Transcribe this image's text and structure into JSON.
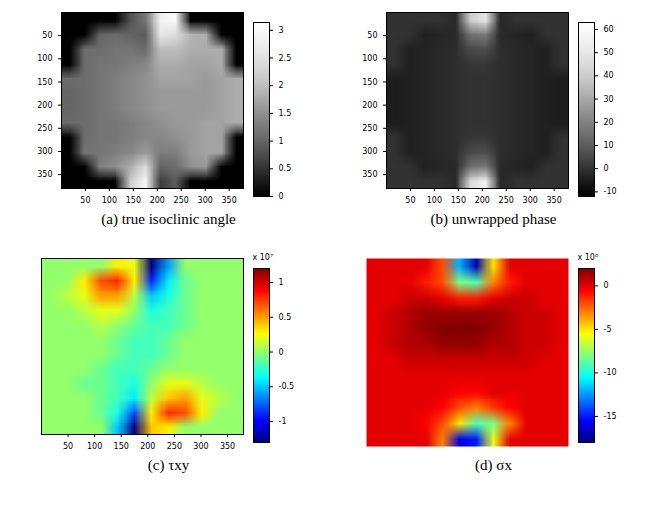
{
  "chart_data": [
    {
      "type": "heatmap",
      "title": "(a) true isoclinic angle",
      "color": "gray",
      "xlim": [
        0,
        380
      ],
      "ylim": [
        0,
        380
      ],
      "xticks": [
        50,
        100,
        150,
        200,
        250,
        300,
        350
      ],
      "yticks": [
        50,
        100,
        150,
        200,
        250,
        300,
        350
      ],
      "cells": [
        [
          0,
          0,
          0,
          0,
          0.8,
          1.2,
          2.8,
          3.0,
          0,
          0,
          0,
          0
        ],
        [
          0,
          0,
          1.0,
          1.1,
          1.0,
          0.9,
          2.6,
          2.4,
          1.9,
          1.8,
          0,
          0
        ],
        [
          0,
          1.1,
          1.1,
          1.2,
          1.2,
          1.1,
          2.0,
          2.0,
          1.8,
          1.8,
          1.8,
          0
        ],
        [
          0,
          1.1,
          1.2,
          1.2,
          1.3,
          1.4,
          1.8,
          1.8,
          1.7,
          1.7,
          1.8,
          0
        ],
        [
          1.1,
          1.1,
          1.2,
          1.3,
          1.4,
          1.5,
          1.7,
          1.7,
          1.7,
          1.6,
          1.7,
          1.8
        ],
        [
          1.0,
          1.1,
          1.2,
          1.3,
          1.4,
          1.5,
          1.6,
          1.6,
          1.6,
          1.6,
          1.7,
          1.8
        ],
        [
          1.0,
          1.1,
          1.2,
          1.3,
          1.4,
          1.5,
          1.6,
          1.6,
          1.6,
          1.6,
          1.7,
          1.8
        ],
        [
          1.1,
          1.1,
          1.2,
          1.2,
          1.3,
          1.4,
          1.5,
          1.6,
          1.6,
          1.7,
          1.7,
          1.8
        ],
        [
          0,
          1.1,
          1.2,
          1.2,
          1.3,
          1.4,
          1.4,
          1.5,
          1.6,
          1.7,
          1.7,
          0
        ],
        [
          0,
          1.2,
          1.2,
          1.3,
          1.4,
          1.6,
          1.3,
          1.3,
          1.6,
          1.7,
          1.7,
          0
        ],
        [
          0,
          0,
          1.3,
          1.5,
          1.8,
          2.4,
          1.0,
          1.1,
          1.5,
          1.6,
          0,
          0
        ],
        [
          0,
          0,
          0,
          0,
          2.2,
          2.9,
          0.6,
          0.9,
          0,
          0,
          0,
          0
        ]
      ],
      "colorbar": {
        "range": [
          0,
          3.14
        ],
        "ticks": [
          0,
          0.5,
          1,
          1.5,
          2,
          2.5,
          3
        ]
      }
    },
    {
      "type": "heatmap",
      "title": "(b) unwrapped phase",
      "color": "gray",
      "xlim": [
        0,
        380
      ],
      "ylim": [
        0,
        380
      ],
      "xticks": [
        50,
        100,
        150,
        200,
        250,
        300,
        350
      ],
      "yticks": [
        50,
        100,
        150,
        200,
        250,
        300,
        350
      ],
      "cells": [
        [
          0,
          0,
          0,
          0,
          -2,
          40,
          50,
          -2,
          0,
          0,
          0,
          0
        ],
        [
          0,
          0,
          -4,
          -3,
          -2,
          15,
          18,
          -2,
          -3,
          -4,
          0,
          0
        ],
        [
          0,
          -4,
          -3,
          -2,
          -1,
          5,
          6,
          -1,
          -2,
          -3,
          -4,
          0
        ],
        [
          0,
          -4,
          -3,
          -2,
          -1,
          1,
          1,
          -1,
          -2,
          -3,
          -4,
          0
        ],
        [
          -5,
          -4,
          -3,
          -2,
          -1,
          0,
          0,
          -1,
          -2,
          -3,
          -4,
          -5
        ],
        [
          -5,
          -4,
          -3,
          -2,
          -1,
          0,
          0,
          -1,
          -2,
          -3,
          -4,
          -5
        ],
        [
          -5,
          -4,
          -3,
          -2,
          -1,
          0,
          0,
          -1,
          -2,
          -3,
          -4,
          -5
        ],
        [
          -5,
          -4,
          -3,
          -2,
          -1,
          0,
          0,
          -1,
          -2,
          -3,
          -4,
          -5
        ],
        [
          0,
          -4,
          -3,
          -2,
          -1,
          1,
          1,
          -1,
          -2,
          -3,
          -4,
          0
        ],
        [
          0,
          -4,
          -3,
          -2,
          -1,
          5,
          6,
          -1,
          -2,
          -3,
          -4,
          0
        ],
        [
          0,
          0,
          -4,
          -3,
          -2,
          15,
          18,
          -2,
          -3,
          -4,
          0,
          0
        ],
        [
          0,
          0,
          0,
          0,
          -2,
          45,
          55,
          -2,
          0,
          0,
          0,
          0
        ]
      ],
      "colorbar": {
        "range": [
          -12,
          63
        ],
        "ticks": [
          -10,
          0,
          10,
          20,
          30,
          40,
          50,
          60
        ]
      }
    },
    {
      "type": "heatmap",
      "title": "(c) τxy",
      "color": "jet",
      "xlim": [
        0,
        380
      ],
      "ylim": [
        0,
        380
      ],
      "tick_labels": "x",
      "xticks": [
        50,
        100,
        150,
        200,
        250,
        300,
        350
      ],
      "cells": [
        [
          0,
          0,
          0,
          0,
          0.3,
          0.2,
          -1.3,
          -0.6,
          0,
          0,
          0,
          0
        ],
        [
          0,
          0,
          0.3,
          0.7,
          0.8,
          0.3,
          -0.9,
          -0.4,
          -0.1,
          0,
          0,
          0
        ],
        [
          0,
          0.1,
          0.2,
          0.5,
          0.5,
          0.1,
          -0.5,
          -0.3,
          -0.1,
          0,
          0,
          0
        ],
        [
          0,
          0,
          0.1,
          0.2,
          0.2,
          0,
          -0.3,
          -0.2,
          -0.1,
          0,
          0,
          0
        ],
        [
          0,
          0,
          0,
          0.1,
          0,
          -0.1,
          -0.2,
          -0.2,
          -0.1,
          0,
          0,
          0
        ],
        [
          0,
          0,
          0,
          0,
          -0.1,
          -0.2,
          -0.2,
          -0.1,
          0,
          0,
          0,
          0
        ],
        [
          0,
          0,
          0,
          0,
          -0.1,
          -0.2,
          -0.2,
          -0.1,
          0,
          0,
          0,
          0
        ],
        [
          0,
          0,
          0,
          -0.1,
          -0.2,
          -0.2,
          -0.1,
          0,
          0,
          0,
          0,
          0
        ],
        [
          0,
          0,
          -0.1,
          -0.1,
          -0.2,
          -0.3,
          0,
          0.2,
          0.2,
          0.1,
          0,
          0
        ],
        [
          0,
          0,
          0,
          -0.1,
          -0.2,
          -0.4,
          0.1,
          0.4,
          0.5,
          0.2,
          0.1,
          0
        ],
        [
          0,
          0,
          0,
          -0.1,
          -0.3,
          -0.8,
          0.3,
          0.8,
          0.7,
          0.3,
          0,
          0
        ],
        [
          0,
          0,
          0,
          0,
          -0.5,
          -1.3,
          0.4,
          0.3,
          0,
          0,
          0,
          0
        ]
      ],
      "colorbar": {
        "range": [
          -1.3,
          1.2
        ],
        "ticks": [
          -1,
          -0.5,
          0,
          0.5,
          1
        ],
        "label": "x 10⁷"
      }
    },
    {
      "type": "heatmap",
      "title": "(d) σx",
      "color": "jet",
      "xlim": [
        0,
        380
      ],
      "ylim": [
        0,
        380
      ],
      "tick_labels": false,
      "cells": [
        [
          0,
          0,
          0,
          0,
          -2,
          -12,
          -17,
          -5,
          0,
          0,
          0,
          0
        ],
        [
          0,
          0,
          0,
          -1,
          -2,
          -8,
          -9,
          -3,
          -1,
          0,
          0,
          0
        ],
        [
          0,
          0,
          0.5,
          0.5,
          0,
          -1,
          -1,
          0,
          0.5,
          0.5,
          0,
          0
        ],
        [
          0,
          0.5,
          1,
          1.5,
          1.5,
          1.5,
          1.5,
          1.5,
          1,
          0.5,
          0.5,
          0
        ],
        [
          0,
          0.5,
          1,
          1.5,
          2,
          2,
          2,
          1.5,
          1,
          0.5,
          0.5,
          0
        ],
        [
          0,
          0.5,
          1,
          1,
          1.5,
          1.5,
          1.5,
          1,
          1,
          0.5,
          0.5,
          0
        ],
        [
          0,
          0,
          0.5,
          0.5,
          0.5,
          0.5,
          0.5,
          0.5,
          0.5,
          0.5,
          0,
          0
        ],
        [
          0,
          0,
          0,
          0,
          0,
          0,
          0,
          0,
          0,
          0,
          0,
          0
        ],
        [
          0,
          0,
          0,
          0,
          0,
          -0.5,
          -0.5,
          0,
          0,
          0,
          0,
          0
        ],
        [
          0,
          0,
          0,
          0,
          -0.5,
          -2,
          -3,
          -1.5,
          -0.5,
          0,
          0,
          0
        ],
        [
          0,
          0,
          0,
          -0.5,
          -2,
          -5,
          -9,
          -8,
          -3,
          0,
          0,
          0
        ],
        [
          0,
          0,
          0,
          0,
          -3,
          -16,
          -15,
          -6,
          0,
          0,
          0,
          0
        ]
      ],
      "colorbar": {
        "range": [
          -18,
          2
        ],
        "ticks": [
          -15,
          -10,
          -5,
          0
        ],
        "label": "x 10⁶"
      }
    }
  ]
}
